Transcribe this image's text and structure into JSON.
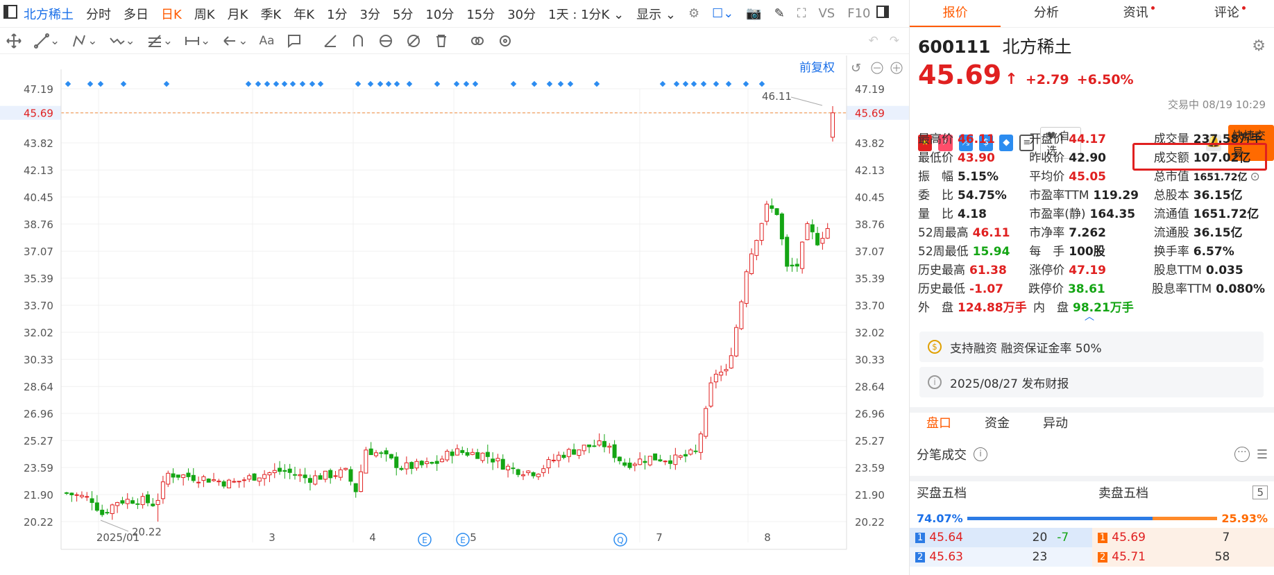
{
  "topbar": {
    "logo": "北方稀土",
    "tabs": [
      "分时",
      "多日",
      "日K",
      "周K",
      "月K",
      "季K",
      "年K",
      "1分",
      "3分",
      "5分",
      "10分",
      "15分",
      "30分"
    ],
    "active_tab": "日K",
    "period_select": "1天 : 1分K",
    "display_select": "显示",
    "extra": [
      "VS",
      "F10"
    ]
  },
  "chart_header": {
    "fuquan": "前复权",
    "max_label": "46.11",
    "min_label": "20.22"
  },
  "chart_data": {
    "type": "candlestick",
    "y_ticks": [
      "47.19",
      "45.69",
      "43.82",
      "42.13",
      "40.45",
      "38.76",
      "37.07",
      "35.39",
      "33.70",
      "32.02",
      "30.33",
      "28.64",
      "26.96",
      "25.27",
      "23.59",
      "21.90",
      "20.22"
    ],
    "x_ticks": [
      "2025/01",
      "3",
      "4",
      "5",
      "7",
      "8"
    ],
    "current_price": "45.69",
    "event_markers": [
      "E",
      "E",
      "Q"
    ],
    "ylim": [
      20.22,
      47.19
    ]
  },
  "right": {
    "tabs": [
      {
        "label": "报价",
        "dot": false
      },
      {
        "label": "分析",
        "dot": false
      },
      {
        "label": "资讯",
        "dot": true
      },
      {
        "label": "评论",
        "dot": true
      }
    ],
    "code": "600111",
    "name": "北方稀土",
    "price": "45.69",
    "change": "+2.79",
    "pct": "+6.50%",
    "status": "交易中 08/19 10:29",
    "zixuan": "自选",
    "quick_trade": "快捷交易",
    "quote_rows": [
      [
        [
          "最高价",
          "46.11",
          "red"
        ],
        [
          "开盘价",
          "44.17",
          "red"
        ],
        [
          "成交量",
          "237.58万手",
          ""
        ]
      ],
      [
        [
          "最低价",
          "43.90",
          "red"
        ],
        [
          "昨收价",
          "42.90",
          ""
        ],
        [
          "成交额",
          "107.02亿",
          ""
        ]
      ],
      [
        [
          "振　幅",
          "5.15%",
          ""
        ],
        [
          "平均价",
          "45.05",
          "red"
        ],
        [
          "总市值",
          "1651.72亿",
          ""
        ]
      ],
      [
        [
          "委　比",
          "54.75%",
          ""
        ],
        [
          "市盈率TTM",
          "119.29",
          ""
        ],
        [
          "总股本",
          "36.15亿",
          ""
        ]
      ],
      [
        [
          "量　比",
          "4.18",
          ""
        ],
        [
          "市盈率(静)",
          "164.35",
          ""
        ],
        [
          "流通值",
          "1651.72亿",
          ""
        ]
      ],
      [
        [
          "52周最高",
          "46.11",
          "red"
        ],
        [
          "市净率",
          "7.262",
          ""
        ],
        [
          "流通股",
          "36.15亿",
          ""
        ]
      ],
      [
        [
          "52周最低",
          "15.94",
          "green"
        ],
        [
          "每　手",
          "100股",
          ""
        ],
        [
          "换手率",
          "6.57%",
          ""
        ]
      ],
      [
        [
          "历史最高",
          "61.38",
          "red"
        ],
        [
          "涨停价",
          "47.19",
          "red"
        ],
        [
          "股息TTM",
          "0.035",
          ""
        ]
      ],
      [
        [
          "历史最低",
          "-1.07",
          "red"
        ],
        [
          "跌停价",
          "38.61",
          "green"
        ],
        [
          "股息率TTM",
          "0.080%",
          ""
        ]
      ],
      [
        [
          "外　盘",
          "124.88万手",
          "red"
        ],
        [
          "内　盘",
          "98.21万手",
          "green"
        ]
      ]
    ],
    "margin_info": "支持融资 融资保证金率 50%",
    "report_info": "2025/08/27  发布财报",
    "bottom_tabs": [
      "盘口",
      "资金",
      "异动"
    ],
    "tick_title": "分笔成交",
    "buy_title": "买盘五档",
    "sell_title": "卖盘五档",
    "level_count": "5",
    "buy_pct": "74.07%",
    "sell_pct": "25.93%",
    "book": [
      {
        "bidx": "1",
        "bid": "45.64",
        "bvol": "20",
        "bchg": "-7",
        "aidx": "1",
        "ask": "45.69",
        "avol": "7"
      },
      {
        "bidx": "2",
        "bid": "45.63",
        "bvol": "23",
        "bchg": "",
        "aidx": "2",
        "ask": "45.71",
        "avol": "58"
      }
    ]
  },
  "colors": {
    "up": "#e02020",
    "down": "#14a514",
    "accent": "#ff5a00",
    "link": "#1a6fe8"
  }
}
